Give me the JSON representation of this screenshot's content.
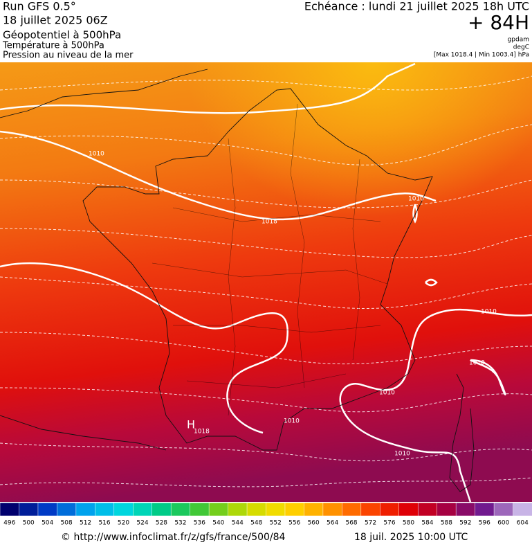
{
  "header": {
    "run": "Run GFS 0.5°",
    "run_date": "18 juillet 2025 06Z",
    "field_1": "Géopotentiel à 500hPa",
    "field_2": "Température à 500hPa",
    "field_3": "Pression au niveau de la mer",
    "valid_time": "Echéance : lundi 21 juillet 2025 18h UTC",
    "lead": "+ 84H",
    "unit_1": "gpdam",
    "unit_2": "degC",
    "pressure_range": "[Max 1018.4 | Min 1003.4] hPa"
  },
  "map": {
    "isobar_labels": [
      "1010",
      "1010",
      "1018",
      "1010",
      "1010",
      "1010",
      "1010",
      "1010",
      "1018"
    ],
    "high_marker": "H"
  },
  "colorbar": {
    "labels": [
      496,
      500,
      504,
      508,
      512,
      516,
      520,
      524,
      528,
      532,
      536,
      540,
      544,
      548,
      552,
      556,
      560,
      564,
      568,
      572,
      576,
      580,
      584,
      588,
      592,
      596,
      600,
      604
    ]
  },
  "footer": {
    "source": "© http://www.infoclimat.fr/z/gfs/france/500/84",
    "generated": "18 juil. 2025 10:00 UTC"
  }
}
